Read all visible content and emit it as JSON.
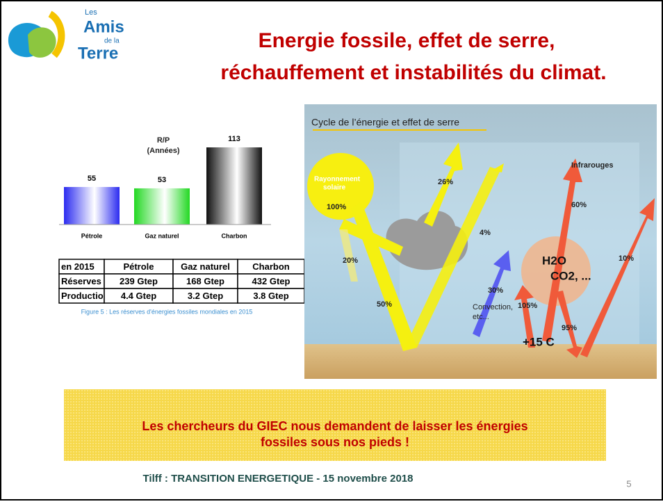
{
  "logo": {
    "small": "Les",
    "amis": "Amis",
    "de": "de la",
    "terre": "Terre"
  },
  "title": [
    "Energie fossile, effet de serre,",
    "réchauffement et instabilités du climat."
  ],
  "chart_data": {
    "type": "bar",
    "title": "R/P",
    "subtitle": "(Années)",
    "categories": [
      "Pétrole",
      "Gaz naturel",
      "Charbon"
    ],
    "values": [
      55,
      53,
      113
    ],
    "colors": [
      "#2b2bf0",
      "#22d822",
      "#111111"
    ]
  },
  "table": {
    "rows": [
      [
        "en 2015",
        "Pétrole",
        "Gaz naturel",
        "Charbon"
      ],
      [
        "Réserves",
        "239 Gtep",
        "168 Gtep",
        "432 Gtep"
      ],
      [
        "Production",
        "4.4 Gtep",
        "3.2 Gtep",
        "3.8 Gtep"
      ]
    ]
  },
  "caption": "Figure 5 : Les réserves d'énergies fossiles mondiales en 2015",
  "diagram": {
    "title": "Cycle de l’énergie et effet de serre",
    "sun": [
      "Rayonnement",
      "solaire"
    ],
    "sun_pct": "100%",
    "reflect_cloud": "26%",
    "reflect_ground": "4%",
    "absorbed_air": "20%",
    "ground": "50%",
    "convection_pct": "30%",
    "convection": [
      "Convection,",
      "etc..."
    ],
    "infrared": "Infrarouges",
    "ir_out": "60%",
    "ir_direct": "10%",
    "ir_up": "105%",
    "ir_back": "95%",
    "temp": "+15 C",
    "gas1": "H2O",
    "gas2": "CO2, ..."
  },
  "callout": [
    "Les chercheurs du GIEC nous demandent de  laisser les énergies",
    "fossiles sous nos pieds !"
  ],
  "footer": "Tilff : TRANSITION ENERGETIQUE - 15 novembre 2018",
  "page_number": "5"
}
